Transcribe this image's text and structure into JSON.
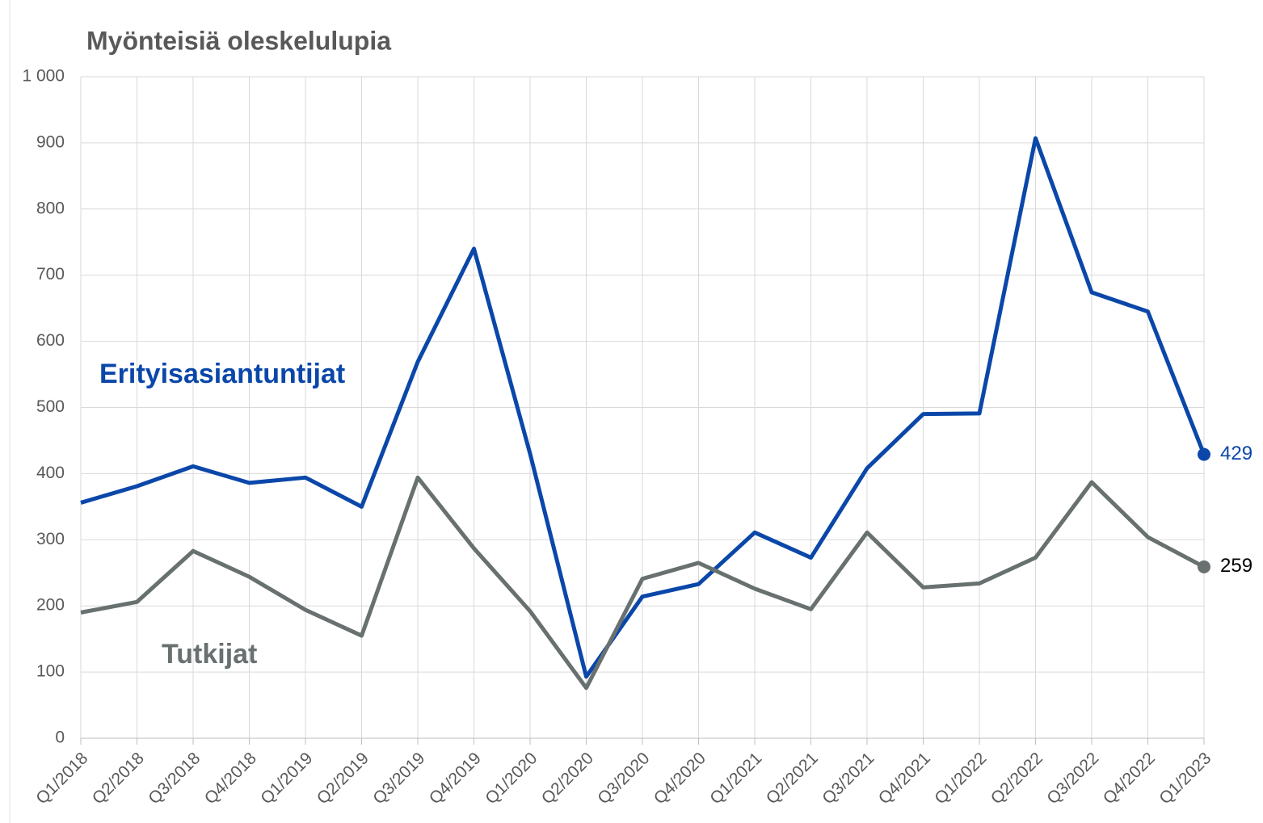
{
  "chart_data": {
    "type": "line",
    "title": "Myönteisiä oleskelulupia",
    "categories": [
      "Q1/2018",
      "Q2/2018",
      "Q3/2018",
      "Q4/2018",
      "Q1/2019",
      "Q2/2019",
      "Q3/2019",
      "Q4/2019",
      "Q1/2020",
      "Q2/2020",
      "Q3/2020",
      "Q4/2020",
      "Q1/2021",
      "Q2/2021",
      "Q3/2021",
      "Q4/2021",
      "Q1/2022",
      "Q2/2022",
      "Q3/2022",
      "Q4/2022",
      "Q1/2023"
    ],
    "series": [
      {
        "name": "Erityisasiantuntijat",
        "color": "#0a47a9",
        "values": [
          356,
          381,
          411,
          386,
          394,
          350,
          569,
          740,
          430,
          93,
          214,
          233,
          311,
          273,
          408,
          490,
          491,
          907,
          674,
          645,
          429
        ]
      },
      {
        "name": "Tutkijat",
        "color": "#687070",
        "values": [
          190,
          206,
          283,
          244,
          194,
          155,
          394,
          287,
          192,
          76,
          241,
          265,
          226,
          195,
          311,
          228,
          234,
          273,
          387,
          304,
          259
        ]
      }
    ],
    "ylim": [
      0,
      1000
    ],
    "yticks": [
      0,
      100,
      200,
      300,
      400,
      500,
      600,
      700,
      800,
      900,
      {
        "value": 1000,
        "label": "1 000"
      }
    ],
    "grid": true
  }
}
